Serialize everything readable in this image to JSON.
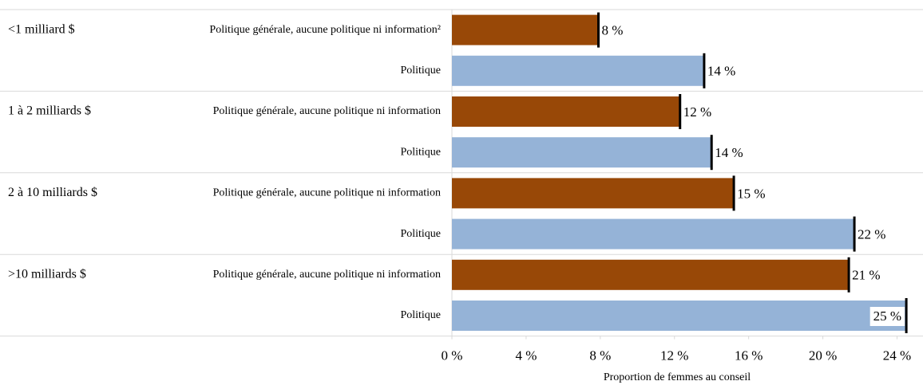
{
  "chart_data": {
    "type": "grouped-bar-horizontal",
    "x_label": "Proportion de femmes au conseil",
    "xlim": [
      0,
      25.4
    ],
    "xticks": [
      {
        "value": 0,
        "label": "0 %"
      },
      {
        "value": 4,
        "label": "4 %"
      },
      {
        "value": 8,
        "label": "8 %"
      },
      {
        "value": 12,
        "label": "12 %"
      },
      {
        "value": 16,
        "label": "16 %"
      },
      {
        "value": 20,
        "label": "20 %"
      },
      {
        "value": 24,
        "label": "24 %"
      }
    ],
    "groups": [
      {
        "label": "<1 milliard $",
        "rows": [
          {
            "label": "Politique générale, aucune politique ni information²",
            "value": 7.9,
            "value_label": "8 %",
            "color": "#984807"
          },
          {
            "label": "Politique",
            "value": 13.6,
            "value_label": "14 %",
            "color": "#95b3d7"
          }
        ]
      },
      {
        "label": "1 à 2 milliards $",
        "rows": [
          {
            "label": "Politique générale, aucune politique ni information",
            "value": 12.3,
            "value_label": "12 %",
            "color": "#984807"
          },
          {
            "label": "Politique",
            "value": 14.0,
            "value_label": "14 %",
            "color": "#95b3d7"
          }
        ]
      },
      {
        "label": "2 à 10 milliards $",
        "rows": [
          {
            "label": "Politique générale, aucune politique ni information",
            "value": 15.2,
            "value_label": "15 %",
            "color": "#984807"
          },
          {
            "label": "Politique",
            "value": 21.7,
            "value_label": "22 %",
            "color": "#95b3d7"
          }
        ]
      },
      {
        "label": ">10 milliards $",
        "rows": [
          {
            "label": "Politique générale, aucune politique ni information",
            "value": 21.4,
            "value_label": "21 %",
            "color": "#984807"
          },
          {
            "label": "Politique",
            "value": 24.5,
            "value_label": "25 %",
            "color": "#95b3d7"
          }
        ]
      }
    ]
  }
}
